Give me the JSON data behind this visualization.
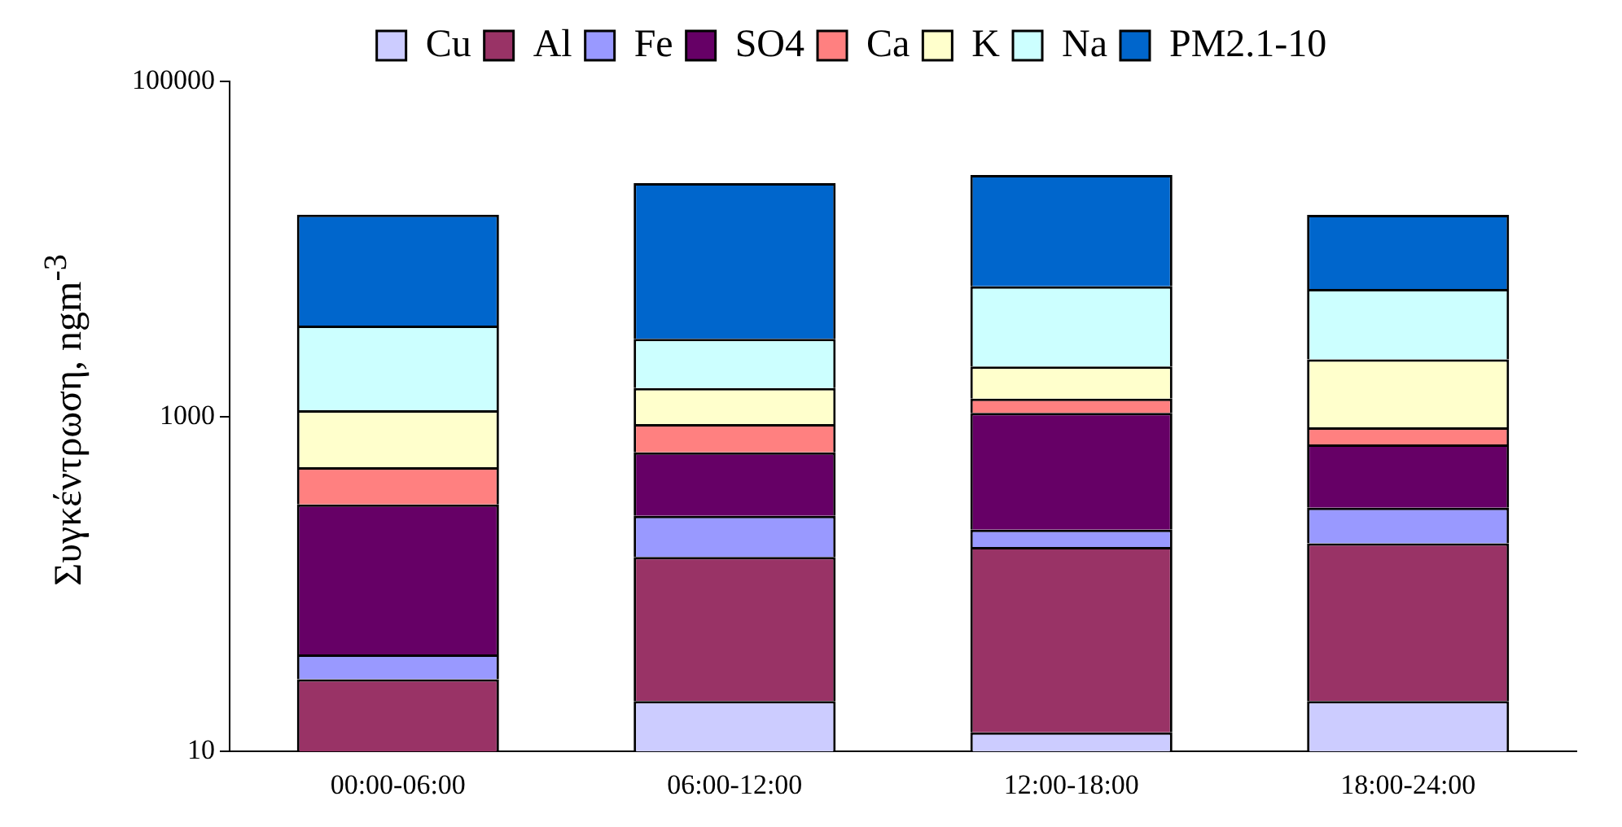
{
  "chart_data": {
    "type": "bar",
    "stacked": true,
    "log": true,
    "legend": "top",
    "grid": false,
    "ylabel": "Συγκέντρωση, ngm$^{-3}$",
    "categories": [
      "00:00-06:00",
      "06:00-12:00",
      "12:00-18:00",
      "18:00-24:00"
    ],
    "ylim": [
      10,
      100000
    ],
    "yticks": [
      10,
      1000,
      100000
    ],
    "series": [
      {
        "name": "Cu",
        "color": "#ccccff",
        "values": [
          null,
          20,
          13,
          20
        ]
      },
      {
        "name": "Al",
        "color": "#993366",
        "values": [
          27,
          125,
          153,
          155
        ]
      },
      {
        "name": "Fe",
        "color": "#9999ff",
        "values": [
          11,
          110,
          45,
          110
        ]
      },
      {
        "name": "SO4",
        "color": "#660066",
        "values": [
          260,
          355,
          840,
          395
        ]
      },
      {
        "name": "Ca",
        "color": "#ff8080",
        "values": [
          200,
          290,
          225,
          180
        ]
      },
      {
        "name": "K",
        "color": "#ffffcc",
        "values": [
          590,
          575,
          710,
          1330
        ]
      },
      {
        "name": "Na",
        "color": "#ccffff",
        "values": [
          2400,
          1430,
          4000,
          3580
        ]
      },
      {
        "name": "PM2.1-10",
        "color": "#0066cc",
        "values": [
          12500,
          21800,
          21600,
          10200
        ]
      }
    ]
  }
}
